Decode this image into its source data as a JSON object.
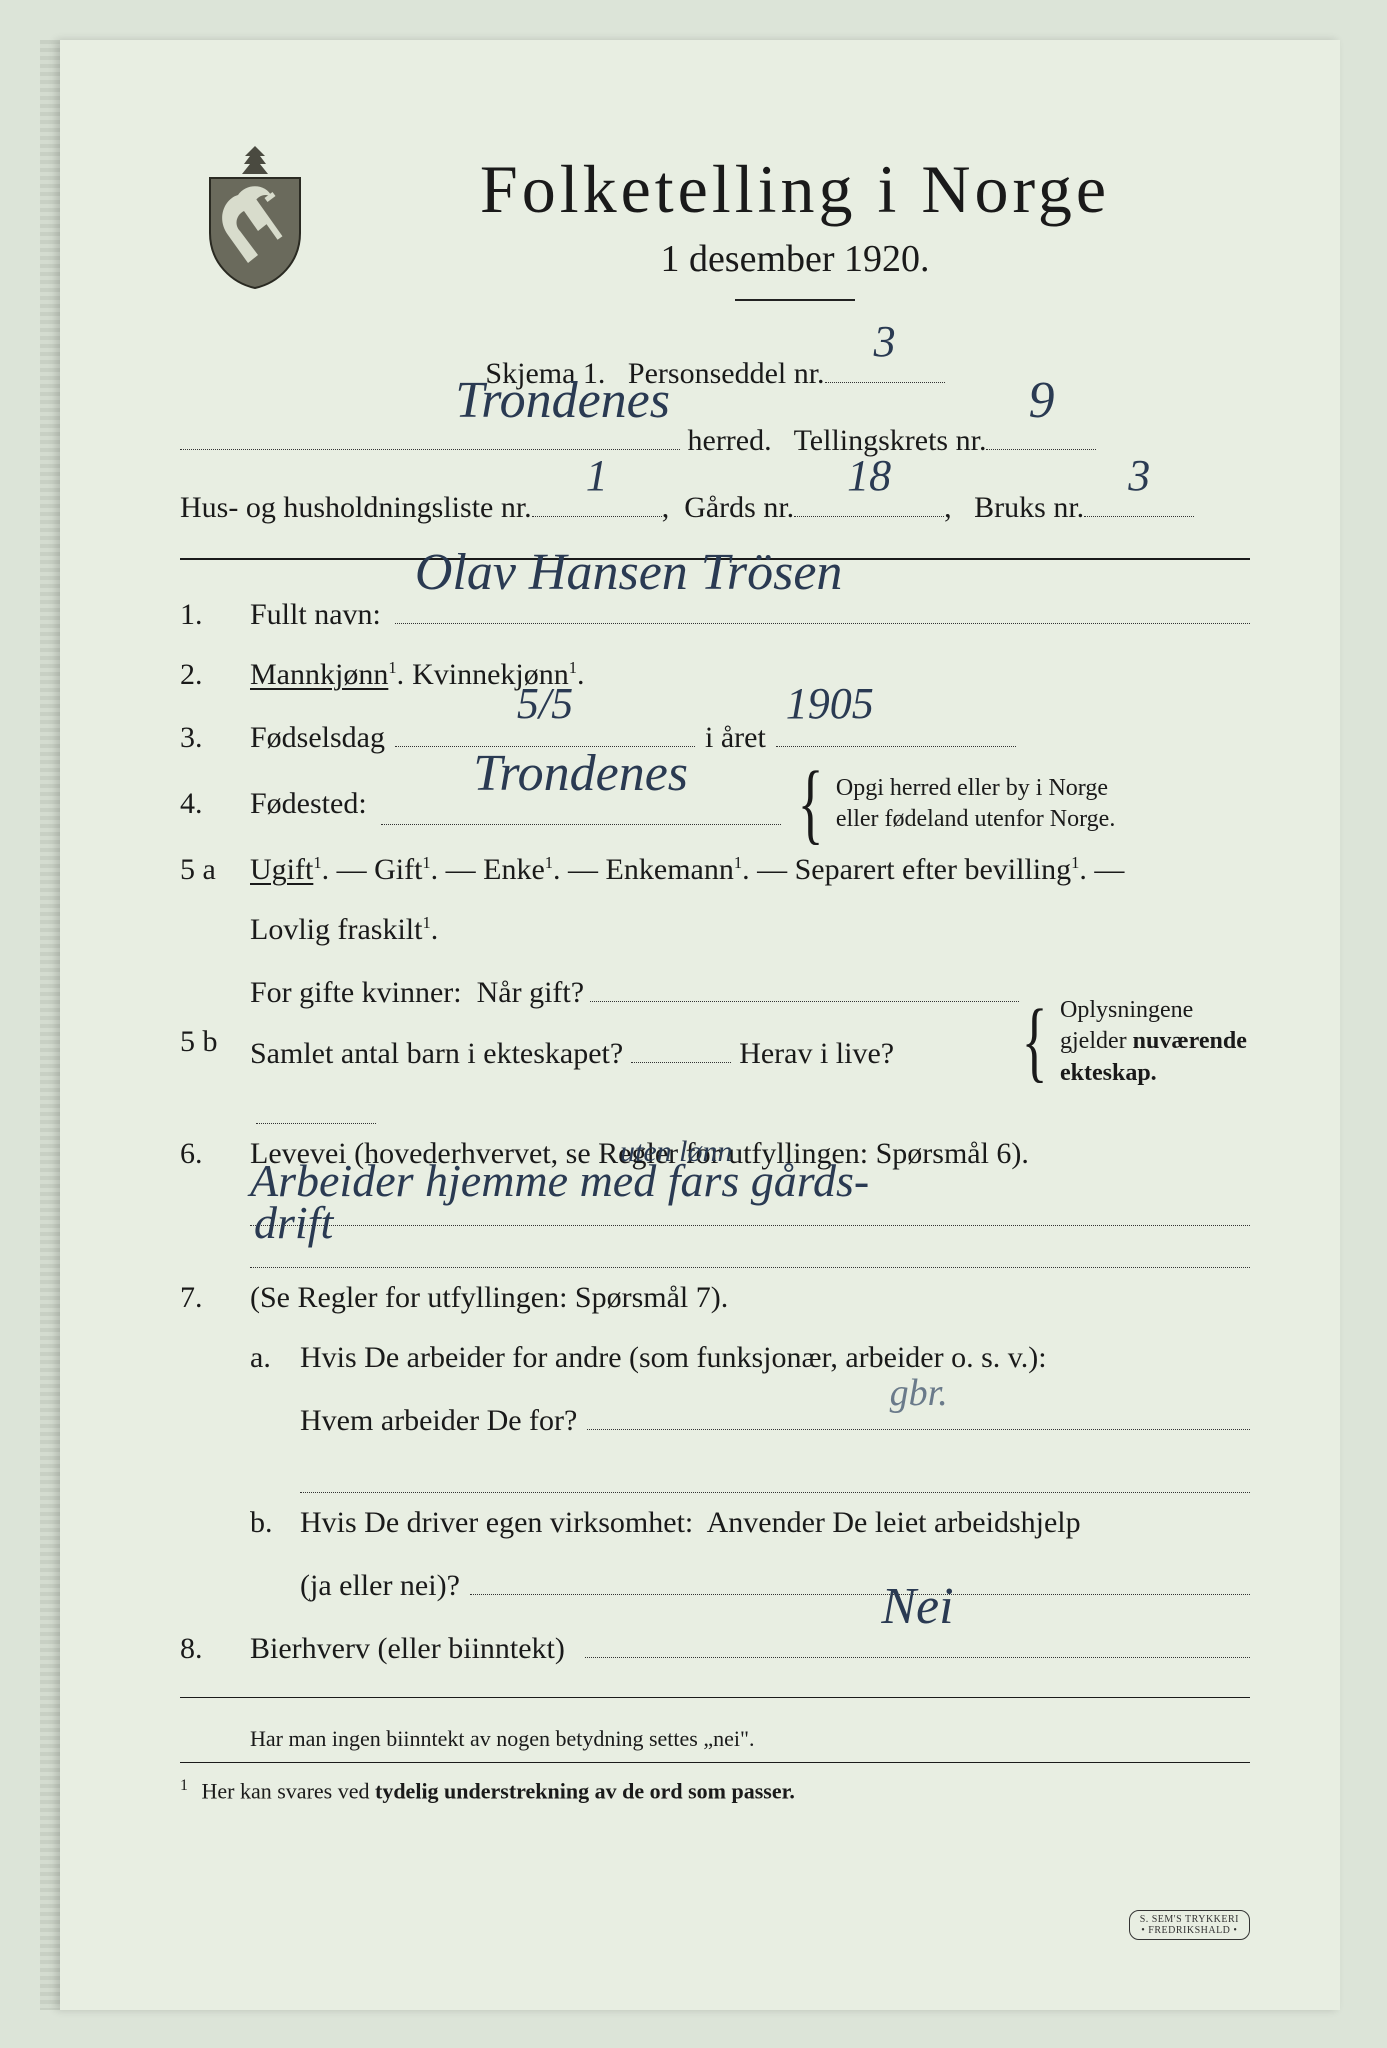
{
  "colors": {
    "paper": "#e8eee2",
    "background": "#dce4d8",
    "ink": "#1a1a1a",
    "handwriting": "#2a3a52",
    "edge": "#c8d0c4"
  },
  "typography": {
    "print_family": "Times New Roman",
    "hand_family": "Brush Script MT",
    "title_size_pt": 48,
    "subtitle_size_pt": 28,
    "body_size_pt": 22,
    "hand_size_pt": 32
  },
  "header": {
    "title": "Folketelling  i  Norge",
    "subtitle": "1 desember 1920."
  },
  "meta": {
    "skjema_label": "Skjema 1.   Personseddel nr.",
    "personseddel_nr": "3",
    "herred_label": " herred.   Tellingskrets nr.",
    "herred": "Trondenes",
    "tellingskrets_nr": "9",
    "husliste_label": "Hus- og husholdningsliste nr.",
    "husliste_nr": "1",
    "gaards_label": ",  Gårds nr.",
    "gaards_nr": "18",
    "bruks_label": ",   Bruks nr.",
    "bruks_nr": "3"
  },
  "q1": {
    "num": "1.",
    "label": "Fullt navn:",
    "value": "Olav  Hansen  Trösen"
  },
  "q2": {
    "num": "2.",
    "mann": "Mannkjønn",
    "kvinne": "Kvinnekjønn",
    "selected": "mann"
  },
  "q3": {
    "num": "3.",
    "label": "Fødselsdag",
    "day": "5/5",
    "year_label": "i året",
    "year": "1905"
  },
  "q4": {
    "num": "4.",
    "label": "Fødested:",
    "value": "Trondenes",
    "note_l1": "Opgi herred eller by i Norge",
    "note_l2": "eller fødeland utenfor Norge."
  },
  "q5a": {
    "num": "5 a",
    "opts": [
      "Ugift",
      "Gift",
      "Enke",
      "Enkemann",
      "Separert efter bevilling"
    ],
    "selected_index": 0,
    "tail": "Lovlig fraskilt"
  },
  "q5b": {
    "num": "5 b",
    "l1a": "For gifte kvinner:  Når gift?",
    "l2a": "Samlet antal barn i ekteskapet?",
    "l2b": "Herav i live?",
    "note_l1": "Oplysningene",
    "note_l2": "gjelder nuværende",
    "note_l3": "ekteskap."
  },
  "q6": {
    "num": "6.",
    "label": "Levevei (hovederhvervet, se Regler for utfyllingen: Spørsmål 6).",
    "insertion": "uten lønn",
    "value_l1": "Arbeider hjemme  med  fars gårds-",
    "value_l2": "drift"
  },
  "q7": {
    "num": "7.",
    "label": "(Se Regler for utfyllingen: Spørsmål 7).",
    "a_num": "a.",
    "a_l1": "Hvis De arbeider for andre (som funksjonær, arbeider o. s. v.):",
    "a_l2": "Hvem arbeider De for?",
    "a_value": "gbr.",
    "b_num": "b.",
    "b_l1": "Hvis De driver egen virksomhet:  Anvender De leiet arbeidshjelp",
    "b_l2": "(ja eller nei)?"
  },
  "q8": {
    "num": "8.",
    "label": "Bierhverv (eller biinntekt)",
    "value": "Nei"
  },
  "tail_note": "Har man ingen biinntekt av nogen betydning settes „nei\".",
  "footnote": {
    "num": "1",
    "text": "Her kan svares ved tydelig understrekning av de ord som passer."
  },
  "printer": {
    "l1": "S. SEM'S TRYKKERI",
    "l2": "• FREDRIKSHALD •"
  }
}
